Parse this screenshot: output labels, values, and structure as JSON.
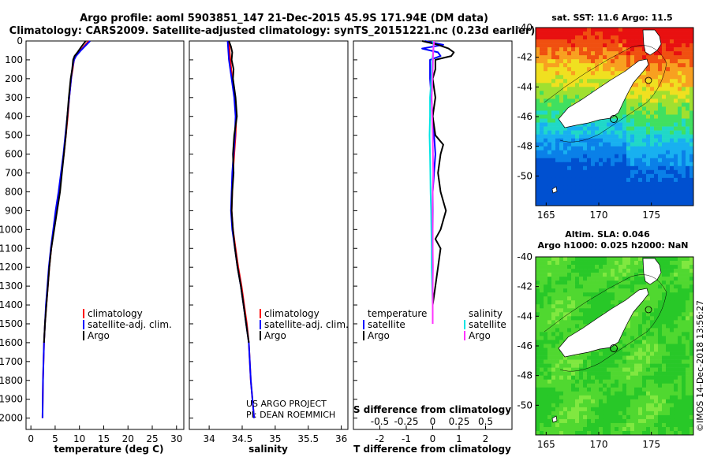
{
  "header": {
    "title_line1": "Argo profile: aoml 5903851_147 21-Dec-2015 45.9S 171.94E (DM data)",
    "title_line2": "Climatology: CARS2009. Satellite-adjusted climatology: synTS_20151221.nc (0.23d earlier)"
  },
  "colors": {
    "climatology": "#ff0000",
    "satellite": "#0000ff",
    "argo": "#000000",
    "temp_satellite": "#0000ff",
    "sal_satellite": "#00e5e5",
    "sal_argo": "#ff33ff",
    "land": "#ffffff"
  },
  "credits": {
    "project": "US ARGO PROJECT",
    "pi": "PI: DEAN ROEMMICH"
  },
  "timestamp": "©IMOS 14-Dec-2018 13:56:27",
  "chart_data": [
    {
      "id": "temperature",
      "type": "line",
      "xlabel": "temperature (deg C)",
      "ylabel": "",
      "xlim": [
        -1,
        31.5
      ],
      "ylim": [
        0,
        2060
      ],
      "y_inverted": true,
      "x_ticks": [
        0,
        5,
        10,
        15,
        20,
        25,
        30
      ],
      "y_ticks": [
        0,
        100,
        200,
        300,
        400,
        500,
        600,
        700,
        800,
        900,
        1000,
        1100,
        1200,
        1300,
        1400,
        1500,
        1600,
        1700,
        1800,
        1900,
        2000
      ],
      "y_tick_labels": [
        "0",
        "100",
        "200",
        "300",
        "400",
        "500",
        "600",
        "700",
        "800",
        "900",
        "1000",
        "1100",
        "1200",
        "1300",
        "1400",
        "1500",
        "1600",
        "1700",
        "1800",
        "1900",
        "2000"
      ],
      "legend": [
        "climatology",
        "satellite-adj. clim.",
        "Argo"
      ],
      "series": [
        {
          "name": "climatology",
          "color_key": "climatology",
          "depth": [
            0,
            50,
            80,
            100,
            150,
            200,
            300,
            400,
            500,
            600,
            700,
            800,
            900,
            1000,
            1100,
            1200,
            1300,
            1400,
            1500,
            1600,
            1800,
            2000
          ],
          "values": [
            11.9,
            10.2,
            9.2,
            8.9,
            8.6,
            8.3,
            7.9,
            7.6,
            7.2,
            6.8,
            6.3,
            5.9,
            5.2,
            4.7,
            4.2,
            3.8,
            3.5,
            3.2,
            2.9,
            2.7,
            2.5,
            2.4
          ]
        },
        {
          "name": "satellite-adj. clim.",
          "color_key": "satellite",
          "depth": [
            0,
            50,
            80,
            100,
            150,
            200,
            300,
            400,
            500,
            600,
            700,
            800,
            900,
            1000,
            1100,
            1200,
            1300,
            1400,
            1500,
            1600,
            1800,
            2000
          ],
          "values": [
            12.2,
            10.3,
            9.3,
            8.9,
            8.5,
            8.3,
            7.9,
            7.5,
            7.1,
            6.7,
            6.2,
            5.7,
            5.1,
            4.6,
            4.1,
            3.7,
            3.4,
            3.1,
            2.9,
            2.7,
            2.5,
            2.4
          ]
        },
        {
          "name": "Argo",
          "color_key": "argo",
          "depth": [
            0,
            30,
            60,
            80,
            100,
            150,
            200,
            300,
            400,
            500,
            600,
            700,
            800,
            900,
            1000,
            1100,
            1200,
            1300,
            1400,
            1500,
            1600
          ],
          "values": [
            11.3,
            10.4,
            9.6,
            9.0,
            8.7,
            8.5,
            8.2,
            7.8,
            7.5,
            7.2,
            6.8,
            6.4,
            6.0,
            5.4,
            4.8,
            4.2,
            3.8,
            3.5,
            3.2,
            2.9,
            2.7
          ]
        }
      ]
    },
    {
      "id": "salinity",
      "type": "line",
      "xlabel": "salinity",
      "xlim": [
        33.7,
        36.1
      ],
      "ylim": [
        0,
        2060
      ],
      "y_inverted": true,
      "x_ticks": [
        34,
        34.5,
        35,
        35.5,
        36
      ],
      "x_tick_labels": [
        "34",
        "34.5",
        "35",
        "35.5",
        "36"
      ],
      "legend": [
        "climatology",
        "satellite-adj. clim.",
        "Argo"
      ],
      "series": [
        {
          "name": "climatology",
          "color_key": "climatology",
          "depth": [
            0,
            100,
            200,
            300,
            400,
            500,
            600,
            700,
            800,
            900,
            1000,
            1100,
            1200,
            1300,
            1400,
            1500,
            1600,
            1800,
            2000
          ],
          "values": [
            34.3,
            34.32,
            34.35,
            34.39,
            34.41,
            34.4,
            34.38,
            34.36,
            34.35,
            34.34,
            34.36,
            34.4,
            34.44,
            34.49,
            34.53,
            34.57,
            34.6,
            34.63,
            34.68
          ]
        },
        {
          "name": "satellite-adj. clim.",
          "color_key": "satellite",
          "depth": [
            0,
            100,
            200,
            300,
            400,
            500,
            600,
            700,
            800,
            900,
            1000,
            1100,
            1200,
            1300,
            1400,
            1500,
            1600,
            1800,
            2000
          ],
          "values": [
            34.28,
            34.3,
            34.34,
            34.38,
            34.4,
            34.39,
            34.37,
            34.35,
            34.34,
            34.33,
            34.35,
            34.39,
            34.43,
            34.48,
            34.52,
            34.56,
            34.6,
            34.63,
            34.68
          ]
        },
        {
          "name": "Argo",
          "color_key": "argo",
          "depth": [
            0,
            30,
            60,
            100,
            150,
            200,
            300,
            400,
            450,
            500,
            600,
            700,
            800,
            900,
            1000,
            1100,
            1200,
            1300,
            1400,
            1500,
            1600
          ],
          "values": [
            34.3,
            34.33,
            34.35,
            34.34,
            34.37,
            34.36,
            34.4,
            34.42,
            34.4,
            34.38,
            34.36,
            34.37,
            34.35,
            34.34,
            34.36,
            34.39,
            34.43,
            34.48,
            34.52,
            34.56,
            34.6
          ]
        }
      ]
    },
    {
      "id": "difference",
      "type": "line",
      "xlabel": "T difference from climatology",
      "top_label": "S difference from climatology",
      "xlim": [
        -3,
        3
      ],
      "ylim": [
        0,
        2060
      ],
      "y_inverted": true,
      "x_ticks": [
        -2,
        -1,
        0,
        1,
        2
      ],
      "x_tick_labels": [
        "-2",
        "-1",
        "0",
        "1",
        "2"
      ],
      "s_ticks": [
        -2,
        -1,
        0,
        1,
        2
      ],
      "s_tick_labels": [
        "-0.5",
        "-0.25",
        "0",
        "0.25",
        "0.5"
      ],
      "legend_left_title": "temperature",
      "legend_right_title": "salinity",
      "legend_left": [
        "satellite",
        "Argo"
      ],
      "legend_right": [
        "satellite",
        "Argo"
      ],
      "series": [
        {
          "name": "temperature satellite",
          "color_key": "temp_satellite",
          "depth": [
            0,
            20,
            40,
            60,
            80,
            100,
            200,
            400,
            600,
            800,
            1000,
            1200,
            1400,
            1500
          ],
          "values": [
            -0.3,
            0.4,
            -0.4,
            0.2,
            0.3,
            -0.1,
            -0.1,
            0.0,
            0.1,
            0.0,
            0.0,
            0.0,
            0.0,
            0.0
          ]
        },
        {
          "name": "temperature Argo",
          "color_key": "argo",
          "depth": [
            0,
            20,
            40,
            60,
            80,
            100,
            150,
            200,
            300,
            400,
            500,
            550,
            600,
            700,
            800,
            900,
            1000,
            1050,
            1100,
            1200,
            1300,
            1400,
            1450
          ],
          "values": [
            -0.4,
            0.2,
            0.6,
            0.8,
            0.7,
            0.1,
            0.1,
            0.0,
            0.1,
            0.0,
            0.1,
            0.4,
            0.3,
            0.2,
            0.3,
            0.5,
            0.3,
            0.1,
            0.3,
            0.2,
            0.1,
            0.0,
            0.0
          ]
        },
        {
          "name": "salinity satellite",
          "color_key": "sal_satellite",
          "depth": [
            0,
            50,
            100,
            200,
            300,
            400,
            500,
            600,
            700,
            800,
            900,
            1000,
            1100,
            1200,
            1300,
            1400,
            1500
          ],
          "values": [
            0.02,
            0.03,
            -0.02,
            -0.05,
            -0.1,
            -0.1,
            -0.12,
            -0.1,
            -0.09,
            -0.08,
            -0.06,
            -0.05,
            -0.04,
            -0.04,
            -0.02,
            0.0,
            0.0
          ]
        },
        {
          "name": "salinity Argo",
          "color_key": "sal_argo",
          "depth": [
            0,
            50,
            100,
            200,
            300,
            400,
            500,
            600,
            700,
            800,
            900,
            1000,
            1100,
            1200,
            1300,
            1400,
            1500
          ],
          "values": [
            0.05,
            0.02,
            0.01,
            -0.01,
            -0.04,
            -0.02,
            0.0,
            0.01,
            0.02,
            0.0,
            -0.01,
            0.0,
            0.0,
            0.01,
            0.0,
            0.0,
            0.0
          ]
        }
      ]
    },
    {
      "id": "sst_map",
      "type": "heatmap",
      "title": "sat. SST: 11.6 Argo: 11.5",
      "x_ticks": [
        165,
        170,
        175
      ],
      "y_ticks": [
        -40,
        -42,
        -44,
        -46,
        -48,
        -50
      ],
      "xlim": [
        164,
        179
      ],
      "ylim": [
        -52,
        -40
      ],
      "colormap": [
        "#0050d0",
        "#0a80e8",
        "#18b0f0",
        "#20d8c8",
        "#40e060",
        "#a0e030",
        "#f0e020",
        "#f8a020",
        "#f05010",
        "#e81010"
      ]
    },
    {
      "id": "sla_map",
      "type": "heatmap",
      "title_line1": "Altim. SLA: 0.046",
      "title_line2": "Argo h1000: 0.025 h2000: NaN",
      "x_ticks": [
        165,
        170,
        175
      ],
      "y_ticks": [
        -40,
        -42,
        -44,
        -46,
        -48,
        -50
      ],
      "xlim": [
        164,
        179
      ],
      "ylim": [
        -52,
        -40
      ],
      "colormap": [
        "#28c828",
        "#50d830",
        "#80e840",
        "#b0f050"
      ]
    }
  ]
}
